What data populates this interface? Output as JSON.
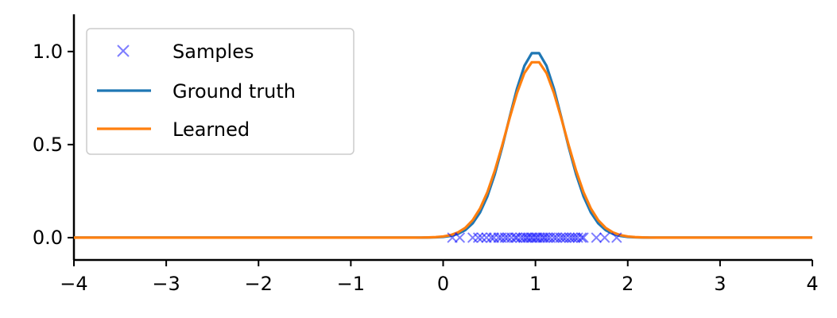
{
  "chart_data": {
    "type": "line",
    "title": "",
    "xlabel": "",
    "ylabel": "",
    "xlim": [
      -4,
      4
    ],
    "ylim": [
      -0.12,
      1.2
    ],
    "xticks": [
      -4,
      -3,
      -2,
      -1,
      0,
      1,
      2,
      3,
      4
    ],
    "xtick_labels": [
      "−4",
      "−3",
      "−2",
      "−1",
      "0",
      "1",
      "2",
      "3",
      "4"
    ],
    "yticks": [
      0.0,
      0.5,
      1.0
    ],
    "ytick_labels": [
      "0.0",
      "0.5",
      "1.0"
    ],
    "grid": false,
    "legend_position": "top-left",
    "legend": [
      {
        "label": "Samples",
        "marker": "x",
        "color": "#0000ff"
      },
      {
        "label": "Ground truth",
        "marker": "line",
        "color": "#1f77b4"
      },
      {
        "label": "Learned",
        "marker": "line",
        "color": "#ff7f0e"
      }
    ],
    "series": [
      {
        "name": "Ground truth",
        "kind": "gaussian",
        "mean": 1.0,
        "sigma": 0.3,
        "peak": 1.0,
        "color": "#1f77b4"
      },
      {
        "name": "Learned",
        "kind": "gaussian",
        "mean": 1.0,
        "sigma": 0.316,
        "peak": 0.95,
        "color": "#ff7f0e"
      }
    ],
    "samples": {
      "name": "Samples",
      "color": "#0000ff",
      "alpha": 0.5,
      "y": 0,
      "x": [
        0.1,
        0.18,
        0.32,
        0.38,
        0.42,
        0.47,
        0.52,
        0.55,
        0.6,
        0.63,
        0.67,
        0.7,
        0.74,
        0.78,
        0.8,
        0.84,
        0.87,
        0.9,
        0.92,
        0.95,
        0.97,
        1.0,
        1.02,
        1.05,
        1.08,
        1.1,
        1.13,
        1.16,
        1.2,
        1.23,
        1.27,
        1.3,
        1.33,
        1.37,
        1.4,
        1.43,
        1.46,
        1.5,
        1.52,
        1.66,
        1.75,
        1.88
      ]
    }
  }
}
